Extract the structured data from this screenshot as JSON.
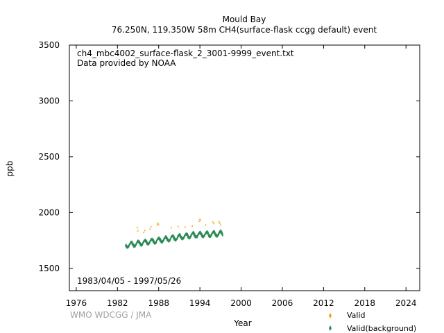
{
  "chart_data": {
    "type": "scatter",
    "title_line1": "Mould Bay",
    "title_line2": "76.250N, 119.350W 58m    CH4(surface-flask ccgg default) event",
    "file_label": "ch4_mbc4002_surface-flask_2_3001-9999_event.txt",
    "provider": "Data provided by NOAA",
    "date_range": "1983/04/05 - 1997/05/26",
    "credit": "WMO WDCGG / JMA",
    "xlabel": "Year",
    "ylabel": "ppb",
    "xlim": [
      1975,
      2026
    ],
    "ylim": [
      1300,
      3500
    ],
    "xticks": [
      1976,
      1982,
      1988,
      1994,
      2000,
      2006,
      2012,
      2018,
      2024
    ],
    "yticks": [
      1500,
      2000,
      2500,
      3000,
      3500
    ],
    "grid": false,
    "legend_position": "bottom-right",
    "series": [
      {
        "name": "Valid",
        "color": "#f0a000",
        "marker": "diamond",
        "points": [
          [
            1984.95,
            1858
          ],
          [
            1985.05,
            1829
          ],
          [
            1985.9,
            1815
          ],
          [
            1986.05,
            1832
          ],
          [
            1986.8,
            1845
          ],
          [
            1986.95,
            1866
          ],
          [
            1987.85,
            1881
          ],
          [
            1987.95,
            1898
          ],
          [
            1988.05,
            1887
          ],
          [
            1990.9,
            1868
          ],
          [
            1991.9,
            1865
          ],
          [
            1993.95,
            1915
          ],
          [
            1994.05,
            1935
          ],
          [
            1994.15,
            1922
          ],
          [
            1994.9,
            1882
          ],
          [
            1995.95,
            1910
          ],
          [
            1996.1,
            1896
          ],
          [
            1996.85,
            1912
          ],
          [
            1996.95,
            1900
          ],
          [
            1997.1,
            1885
          ],
          [
            1989.9,
            1858
          ],
          [
            1992.95,
            1872
          ]
        ]
      },
      {
        "name": "Valid(background)",
        "color": "#2e8b57",
        "marker": "diamond",
        "trend": {
          "start": 1983.26,
          "end": 1997.4,
          "base": 1700,
          "slope": 9.4,
          "flatten_after": 1993.0,
          "amplitude": 20,
          "noise": 8
        }
      }
    ]
  }
}
